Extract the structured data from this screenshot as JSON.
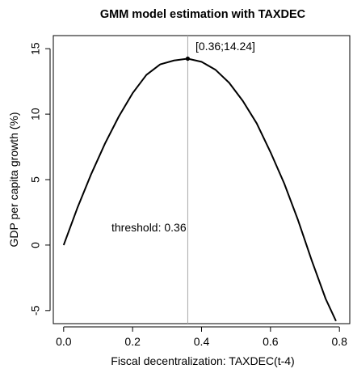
{
  "chart_data": {
    "type": "line",
    "title": "GMM model estimation with TAXDEC",
    "xlabel": "Fiscal decentralization: TAXDEC(t-4)",
    "ylabel": "GDP per capita growth (%)",
    "xlim": [
      -0.03,
      0.83
    ],
    "ylim": [
      -6.0,
      16.0
    ],
    "x_ticks": [
      0.0,
      0.2,
      0.4,
      0.6,
      0.8
    ],
    "x_tick_labels": [
      "0.0",
      "0.2",
      "0.4",
      "0.6",
      "0.8"
    ],
    "y_ticks": [
      -5,
      0,
      5,
      10,
      15
    ],
    "y_tick_labels": [
      "-5",
      "0",
      "5",
      "10",
      "15"
    ],
    "grid": false,
    "series": [
      {
        "x": [
          0.0,
          0.04,
          0.08,
          0.12,
          0.16,
          0.2,
          0.24,
          0.28,
          0.32,
          0.36,
          0.4,
          0.44,
          0.48,
          0.52,
          0.56,
          0.6,
          0.64,
          0.68,
          0.72,
          0.76,
          0.79
        ],
        "y": [
          0.0,
          2.85,
          5.43,
          7.76,
          9.82,
          11.6,
          13.0,
          13.8,
          14.1,
          14.24,
          14.0,
          13.4,
          12.4,
          11.0,
          9.3,
          7.1,
          4.7,
          1.9,
          -1.2,
          -4.1,
          -5.8
        ]
      }
    ],
    "peak_point": {
      "x": 0.36,
      "y": 14.24
    },
    "threshold_line": {
      "x": 0.36
    },
    "annotations": {
      "peak_label": "[0.36;14.24]",
      "threshold_label": "threshold: 0.36"
    }
  }
}
